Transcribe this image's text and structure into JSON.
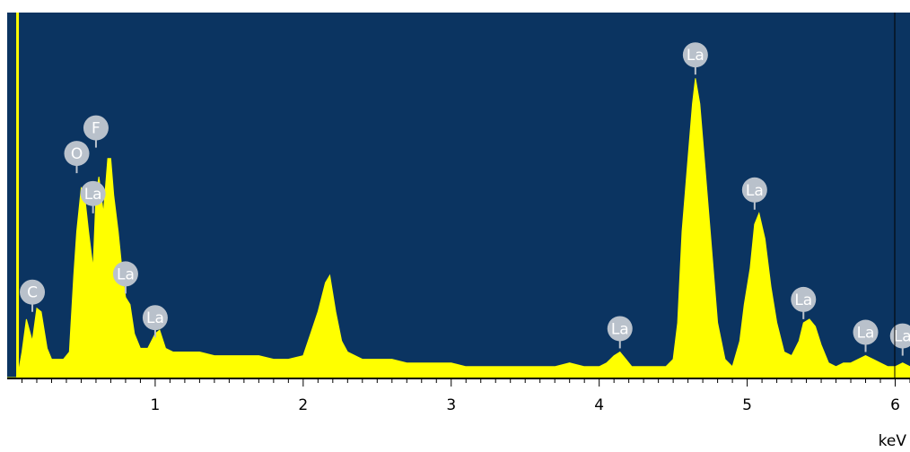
{
  "chart_data": {
    "type": "area",
    "title": "",
    "xlabel": "keV",
    "ylabel": "",
    "xlim": [
      0,
      6.1
    ],
    "ylim": [
      0,
      100
    ],
    "grid": false,
    "legend": "none",
    "x_ticks": [
      1,
      2,
      3,
      4,
      5,
      6
    ],
    "x_tick_labels": [
      "1",
      "2",
      "3",
      "4",
      "5",
      "6"
    ],
    "series": [
      {
        "x": [
          0.0,
          0.07,
          0.1,
          0.13,
          0.17,
          0.2,
          0.23,
          0.27,
          0.3,
          0.34,
          0.38,
          0.42,
          0.45,
          0.47,
          0.5,
          0.52,
          0.55,
          0.58,
          0.6,
          0.62,
          0.65,
          0.68,
          0.7,
          0.72,
          0.75,
          0.78,
          0.8,
          0.83,
          0.86,
          0.9,
          0.95,
          1.0,
          1.03,
          1.07,
          1.12,
          1.2,
          1.3,
          1.4,
          1.5,
          1.6,
          1.7,
          1.8,
          1.9,
          2.0,
          2.05,
          2.1,
          2.15,
          2.18,
          2.22,
          2.26,
          2.3,
          2.35,
          2.4,
          2.5,
          2.6,
          2.7,
          2.8,
          2.9,
          3.0,
          3.1,
          3.2,
          3.3,
          3.4,
          3.5,
          3.6,
          3.7,
          3.8,
          3.9,
          4.0,
          4.05,
          4.1,
          4.14,
          4.18,
          4.22,
          4.3,
          4.4,
          4.45,
          4.5,
          4.53,
          4.56,
          4.6,
          4.63,
          4.65,
          4.68,
          4.71,
          4.75,
          4.8,
          4.85,
          4.9,
          4.95,
          4.98,
          5.02,
          5.05,
          5.08,
          5.12,
          5.16,
          5.2,
          5.25,
          5.3,
          5.35,
          5.38,
          5.42,
          5.46,
          5.5,
          5.55,
          5.6,
          5.65,
          5.7,
          5.75,
          5.8,
          5.85,
          5.9,
          5.95,
          6.0,
          6.05,
          6.1
        ],
        "values": [
          0,
          0,
          7,
          16,
          10,
          19,
          18,
          8,
          5,
          5,
          5,
          7,
          28,
          40,
          52,
          51,
          40,
          30,
          50,
          55,
          45,
          60,
          60,
          50,
          40,
          28,
          22,
          20,
          12,
          8,
          8,
          12,
          13,
          8,
          7,
          7,
          7,
          6,
          6,
          6,
          6,
          5,
          5,
          6,
          12,
          18,
          26,
          28,
          18,
          10,
          7,
          6,
          5,
          5,
          5,
          4,
          4,
          4,
          4,
          3,
          3,
          3,
          3,
          3,
          3,
          3,
          4,
          3,
          3,
          4,
          6,
          7,
          5,
          3,
          3,
          3,
          3,
          5,
          15,
          40,
          60,
          75,
          82,
          75,
          60,
          40,
          15,
          5,
          3,
          10,
          20,
          30,
          42,
          45,
          38,
          25,
          15,
          7,
          6,
          10,
          15,
          16,
          14,
          9,
          4,
          3,
          4,
          4,
          5,
          6,
          5,
          4,
          3,
          3,
          4,
          3
        ]
      }
    ],
    "peak_labels": [
      {
        "label": "C",
        "x": 0.17,
        "y": 18
      },
      {
        "label": "O",
        "x": 0.47,
        "y": 56
      },
      {
        "label": "F",
        "x": 0.6,
        "y": 63
      },
      {
        "label": "La",
        "x": 0.58,
        "y": 45
      },
      {
        "label": "La",
        "x": 0.8,
        "y": 23
      },
      {
        "label": "La",
        "x": 1.0,
        "y": 11
      },
      {
        "label": "La",
        "x": 4.14,
        "y": 8
      },
      {
        "label": "La",
        "x": 4.65,
        "y": 83
      },
      {
        "label": "La",
        "x": 5.05,
        "y": 46
      },
      {
        "label": "La",
        "x": 5.38,
        "y": 16
      },
      {
        "label": "La",
        "x": 5.8,
        "y": 7
      },
      {
        "label": "La",
        "x": 6.05,
        "y": 6
      }
    ],
    "colors": {
      "background": "#0b3461",
      "fill": "#ffff00",
      "axis": "#000000",
      "marker_fill": "#b9c1cb",
      "marker_text": "#ffffff"
    }
  }
}
